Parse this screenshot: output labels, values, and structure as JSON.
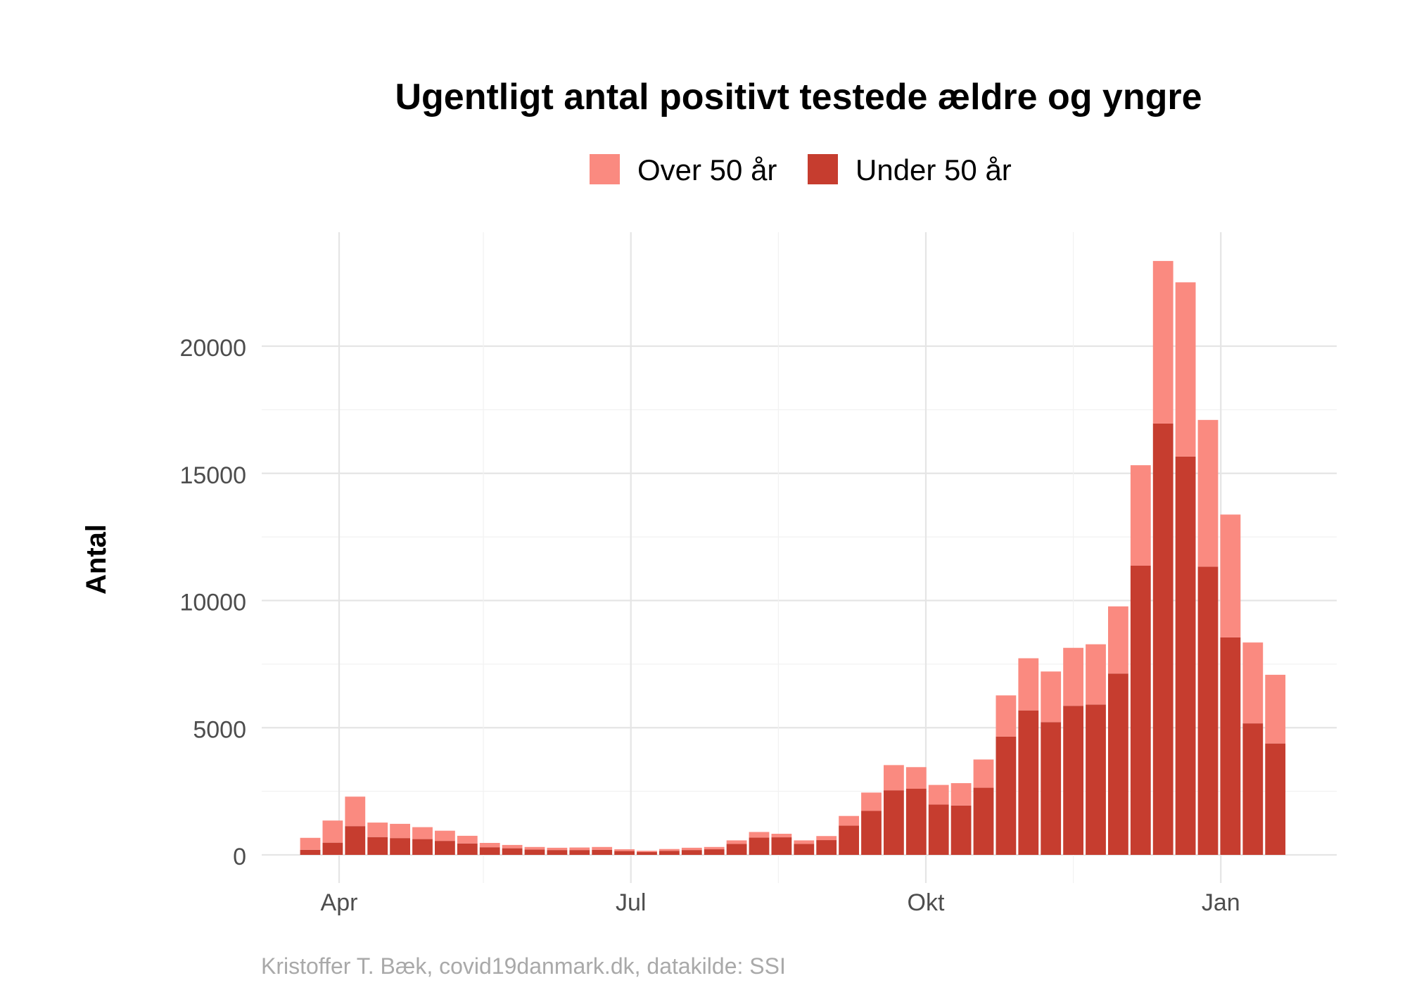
{
  "chart_data": {
    "type": "bar",
    "stacked": true,
    "title": "Ugentligt antal positivt testede ældre og yngre",
    "ylabel": "Antal",
    "xlabel": "",
    "caption": "Kristoffer T. Bæk, covid19danmark.dk, datakilde: SSI",
    "ylim": [
      0,
      23400
    ],
    "yticks": [
      0,
      5000,
      10000,
      15000,
      20000
    ],
    "ytick_labels": [
      "0",
      "5000",
      "10000",
      "15000",
      "20000"
    ],
    "xtick_labels": [
      "Apr",
      "Jul",
      "Okt",
      "Jan"
    ],
    "grid": true,
    "legend_position": "top",
    "colors": {
      "Over 50 år": "#fa8a80",
      "Under 50 år": "#c63d2f",
      "grid": "#e5e5e5"
    },
    "categories": [
      "2020-03-23",
      "2020-03-30",
      "2020-04-06",
      "2020-04-13",
      "2020-04-20",
      "2020-04-27",
      "2020-05-04",
      "2020-05-11",
      "2020-05-18",
      "2020-05-25",
      "2020-06-01",
      "2020-06-08",
      "2020-06-15",
      "2020-06-22",
      "2020-06-29",
      "2020-07-06",
      "2020-07-13",
      "2020-07-20",
      "2020-07-27",
      "2020-08-03",
      "2020-08-10",
      "2020-08-17",
      "2020-08-24",
      "2020-08-31",
      "2020-09-07",
      "2020-09-14",
      "2020-09-21",
      "2020-09-28",
      "2020-10-05",
      "2020-10-12",
      "2020-10-19",
      "2020-10-26",
      "2020-11-02",
      "2020-11-09",
      "2020-11-16",
      "2020-11-23",
      "2020-11-30",
      "2020-12-07",
      "2020-12-14",
      "2020-12-21",
      "2020-12-28",
      "2021-01-04",
      "2021-01-11",
      "2021-01-18"
    ],
    "series": [
      {
        "name": "Under 50 år",
        "values": [
          200,
          480,
          1130,
          700,
          660,
          620,
          550,
          450,
          300,
          260,
          210,
          190,
          190,
          200,
          150,
          110,
          160,
          190,
          220,
          430,
          680,
          690,
          430,
          580,
          1150,
          1730,
          2540,
          2600,
          1980,
          1940,
          2640,
          4650,
          5680,
          5220,
          5860,
          5910,
          7130,
          11370,
          16960,
          15660,
          11330,
          8550,
          5170,
          4380
        ]
      },
      {
        "name": "Over 50 år",
        "values": [
          470,
          870,
          1160,
          570,
          560,
          470,
          400,
          300,
          170,
          130,
          100,
          90,
          100,
          110,
          70,
          50,
          70,
          90,
          90,
          140,
          220,
          140,
          140,
          160,
          380,
          720,
          990,
          850,
          770,
          880,
          1110,
          1620,
          2050,
          1990,
          2280,
          2370,
          2640,
          3950,
          6390,
          6850,
          5770,
          4830,
          3180,
          2700
        ]
      }
    ]
  }
}
